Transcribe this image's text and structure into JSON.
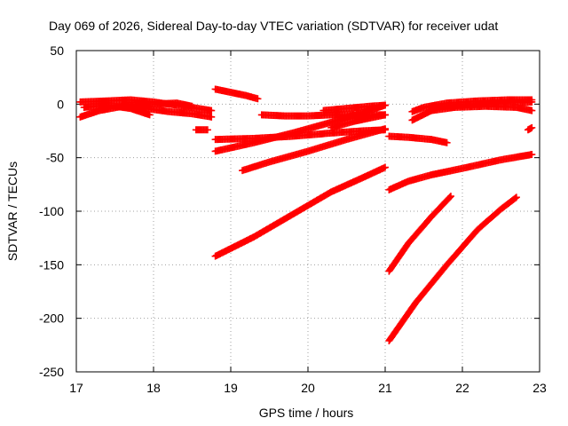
{
  "chart_data": {
    "type": "scatter",
    "title": "Day 069 of 2026, Sidereal Day-to-day VTEC variation (SDTVAR) for receiver udat",
    "xlabel": "GPS time / hours",
    "ylabel": "SDTVAR / TECUs",
    "xlim": [
      17,
      23
    ],
    "ylim": [
      -250,
      50
    ],
    "xticks": [
      "17",
      "18",
      "19",
      "20",
      "21",
      "22",
      "23"
    ],
    "yticks": [
      "50",
      "0",
      "-50",
      "-100",
      "-150",
      "-200",
      "-250"
    ],
    "grid": true,
    "marker_color": "#ff0000",
    "series": [
      {
        "x": [
          17.05,
          17.3,
          17.6,
          17.9,
          18.2,
          18.5,
          18.75
        ],
        "y": [
          -12,
          -6,
          -2,
          -4,
          -7,
          -9,
          -12
        ]
      },
      {
        "x": [
          17.05,
          17.4,
          17.7,
          18.0,
          18.4,
          18.75
        ],
        "y": [
          2,
          3,
          4,
          2,
          -2,
          -6
        ]
      },
      {
        "x": [
          17.1,
          17.4,
          17.7,
          17.95
        ],
        "y": [
          -3,
          -1,
          -4,
          -10
        ]
      },
      {
        "x": [
          17.6,
          18.0,
          18.3,
          18.5
        ],
        "y": [
          -1,
          0,
          1,
          -2
        ]
      },
      {
        "x": [
          18.55,
          18.7
        ],
        "y": [
          -24,
          -24
        ]
      },
      {
        "x": [
          18.8,
          19.0,
          19.2,
          19.35
        ],
        "y": [
          14,
          11,
          8,
          5
        ]
      },
      {
        "x": [
          18.8,
          19.3,
          19.8,
          20.3,
          20.7,
          21.0
        ],
        "y": [
          -44,
          -36,
          -27,
          -17,
          -8,
          -1
        ]
      },
      {
        "x": [
          18.8,
          19.3,
          19.8,
          20.3,
          20.7,
          21.0
        ],
        "y": [
          -33,
          -32,
          -30,
          -27,
          -25,
          -24
        ]
      },
      {
        "x": [
          19.4,
          19.7,
          20.0,
          20.3,
          20.6,
          21.0
        ],
        "y": [
          -10,
          -11,
          -11,
          -10,
          -10,
          -10
        ]
      },
      {
        "x": [
          20.2,
          20.5,
          20.8,
          21.0
        ],
        "y": [
          -6,
          -4,
          -2,
          -1
        ]
      },
      {
        "x": [
          20.3,
          20.6,
          21.0
        ],
        "y": [
          -22,
          -16,
          -10
        ]
      },
      {
        "x": [
          19.15,
          19.5,
          20.0,
          20.5,
          21.0
        ],
        "y": [
          -62,
          -54,
          -44,
          -33,
          -23
        ]
      },
      {
        "x": [
          18.8,
          19.3,
          19.8,
          20.3,
          20.7,
          21.0
        ],
        "y": [
          -142,
          -124,
          -103,
          -82,
          -69,
          -59
        ]
      },
      {
        "x": [
          21.05,
          21.3,
          21.6,
          21.8
        ],
        "y": [
          -30,
          -31,
          -33,
          -36
        ]
      },
      {
        "x": [
          21.35,
          21.6,
          21.9,
          22.3,
          22.7,
          22.9
        ],
        "y": [
          -15,
          -6,
          -3,
          -2,
          -3,
          -6
        ]
      },
      {
        "x": [
          21.35,
          21.5,
          21.8,
          22.2,
          22.6,
          22.9
        ],
        "y": [
          -7,
          -3,
          1,
          3,
          4,
          4
        ]
      },
      {
        "x": [
          21.6,
          22.0,
          22.5,
          22.9
        ],
        "y": [
          -3,
          -1,
          1,
          2
        ]
      },
      {
        "x": [
          22.85,
          22.9
        ],
        "y": [
          -24,
          -22
        ]
      },
      {
        "x": [
          21.05,
          21.3,
          21.6,
          22.0,
          22.5,
          22.9
        ],
        "y": [
          -80,
          -72,
          -66,
          -60,
          -52,
          -47
        ]
      },
      {
        "x": [
          21.05,
          21.3,
          21.6,
          21.85
        ],
        "y": [
          -156,
          -130,
          -105,
          -86
        ]
      },
      {
        "x": [
          21.05,
          21.4,
          21.8,
          22.2,
          22.5,
          22.7
        ],
        "y": [
          -221,
          -185,
          -150,
          -117,
          -98,
          -87
        ]
      }
    ]
  }
}
